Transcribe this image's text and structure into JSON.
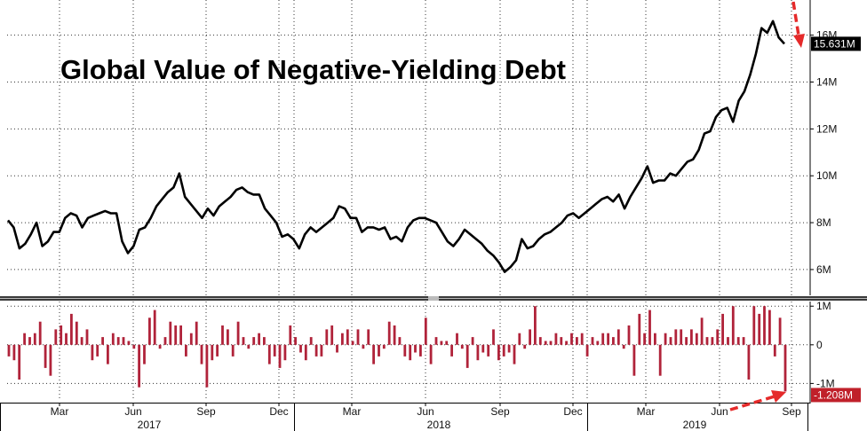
{
  "chart_data": [
    {
      "type": "line",
      "title": "Global Value of Negative-Yielding Debt",
      "series": [
        {
          "values": [
            8.1,
            7.8,
            6.9,
            7.1,
            7.5,
            8.0,
            7.0,
            7.2,
            7.6,
            7.6,
            8.2,
            8.4,
            8.3,
            7.8,
            8.2,
            8.3,
            8.4,
            8.5,
            8.4,
            8.4,
            7.2,
            6.7,
            7.0,
            7.7,
            7.8,
            8.2,
            8.7,
            9.0,
            9.3,
            9.5,
            10.1,
            9.1,
            8.8,
            8.5,
            8.2,
            8.6,
            8.3,
            8.7,
            8.9,
            9.1,
            9.4,
            9.5,
            9.3,
            9.2,
            9.2,
            8.6,
            8.3,
            8.0,
            7.4,
            7.5,
            7.3,
            6.9,
            7.5,
            7.8,
            7.6,
            7.8,
            8.0,
            8.2,
            8.7,
            8.6,
            8.2,
            8.2,
            7.6,
            7.8,
            7.8,
            7.7,
            7.8,
            7.3,
            7.4,
            7.2,
            7.8,
            8.1,
            8.2,
            8.2,
            8.1,
            8.0,
            7.6,
            7.2,
            7.0,
            7.3,
            7.7,
            7.5,
            7.3,
            7.1,
            6.8,
            6.6,
            6.3,
            5.9,
            6.1,
            6.4,
            7.3,
            6.9,
            7.0,
            7.3,
            7.5,
            7.6,
            7.8,
            8.0,
            8.3,
            8.4,
            8.2,
            8.4,
            8.6,
            8.8,
            9.0,
            9.1,
            8.9,
            9.2,
            8.6,
            9.1,
            9.5,
            9.9,
            10.4,
            9.7,
            9.8,
            9.8,
            10.1,
            10.0,
            10.3,
            10.6,
            10.7,
            11.1,
            11.8,
            11.9,
            12.5,
            12.8,
            12.9,
            12.3,
            13.2,
            13.6,
            14.3,
            15.2,
            16.3,
            16.1,
            16.6,
            15.9,
            15.631
          ]
        }
      ],
      "y_ticks": [
        "6M",
        "8M",
        "10M",
        "12M",
        "14M",
        "16M"
      ],
      "ylim": [
        4.9,
        17.5
      ],
      "last_value_label": "15.631M",
      "grid": true
    },
    {
      "type": "bar",
      "series": [
        {
          "values": [
            -0.3,
            -0.4,
            -0.9,
            0.3,
            0.2,
            0.3,
            0.6,
            -0.6,
            -0.8,
            0.4,
            0.5,
            0.3,
            0.8,
            0.6,
            0.2,
            0.4,
            -0.4,
            -0.3,
            0.2,
            -0.5,
            0.3,
            0.2,
            0.2,
            0.1,
            -0.1,
            -1.1,
            -0.5,
            0.7,
            0.9,
            -0.1,
            0.2,
            0.6,
            0.5,
            0.5,
            -0.3,
            0.3,
            0.6,
            -0.5,
            -1.1,
            -0.4,
            -0.3,
            0.5,
            0.4,
            -0.3,
            0.6,
            0.2,
            -0.1,
            0.2,
            0.3,
            0.2,
            -0.5,
            -0.3,
            -0.6,
            -0.4,
            0.5,
            0.2,
            -0.2,
            -0.4,
            0.2,
            -0.3,
            -0.3,
            0.4,
            0.5,
            -0.2,
            0.3,
            0.4,
            0.1,
            0.4,
            -0.1,
            0.4,
            -0.5,
            -0.3,
            -0.1,
            0.6,
            0.5,
            0.2,
            -0.3,
            -0.4,
            -0.2,
            -0.3,
            0.7,
            -0.5,
            0.2,
            0.1,
            0.1,
            -0.3,
            0.3,
            -0.1,
            -0.6,
            0.2,
            -0.4,
            -0.2,
            -0.3,
            0.4,
            -0.4,
            -0.3,
            -0.2,
            -0.5,
            0.3,
            -0.1,
            0.4,
            1.0,
            0.2,
            0.1,
            0.1,
            0.3,
            0.2,
            0.1,
            0.3,
            0.2,
            0.3,
            -0.3,
            0.2,
            0.1,
            0.3,
            0.3,
            0.2,
            0.4,
            -0.1,
            0.5,
            -0.8,
            0.8,
            0.3,
            0.9,
            0.3,
            -0.8,
            0.3,
            0.2,
            0.4,
            0.4,
            0.2,
            0.4,
            0.3,
            0.7,
            0.2,
            0.2,
            0.4,
            0.8,
            0.2,
            1.0,
            0.2,
            0.2,
            -0.9,
            1.0,
            0.8,
            1.0,
            0.9,
            -0.3,
            0.7,
            -1.208
          ]
        }
      ],
      "y_ticks": [
        "1M",
        "0",
        "-1M"
      ],
      "ylim": [
        -1.45,
        1.12
      ],
      "last_value_label": "-1.208M",
      "grid": true,
      "x_tick_labels": [
        "Mar",
        "Jun",
        "Sep",
        "Dec",
        "Mar",
        "Jun",
        "Sep",
        "Dec",
        "Mar",
        "Jun",
        "Sep"
      ],
      "year_labels": [
        "2017",
        "2018",
        "2019"
      ]
    }
  ],
  "colors": {
    "line": "#000000",
    "bar": "#b0233a",
    "arrow": "#e52a2a",
    "grid": "#333333",
    "callout_line_bg": "#000000",
    "callout_bar_bg": "#c0202a"
  }
}
